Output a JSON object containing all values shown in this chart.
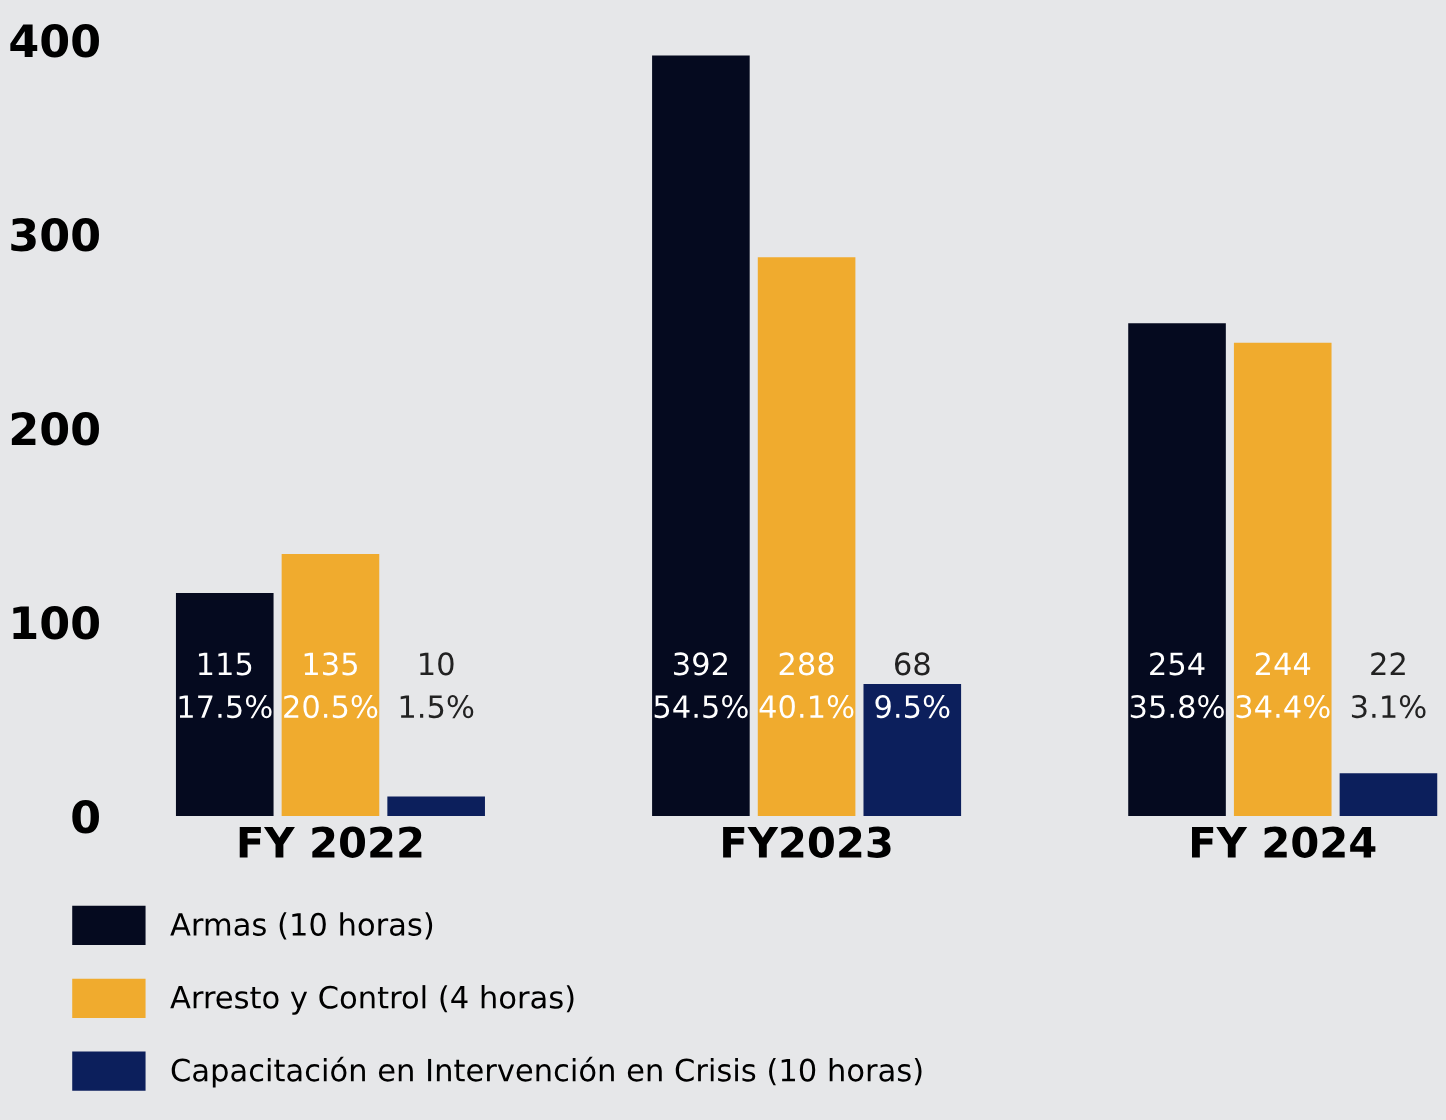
{
  "chart_data": {
    "type": "bar",
    "categories": [
      "FY 2022",
      "FY2023",
      "FY 2024"
    ],
    "series": [
      {
        "name": "Armas (10 horas)",
        "color": "#050a1f",
        "values": [
          115,
          392,
          254
        ],
        "value_labels": [
          "115\n17.5%",
          "392\n54.5%",
          "254\n35.8%"
        ]
      },
      {
        "name": "Arresto y Control (4 horas)",
        "color": "#f0ab2e",
        "values": [
          135,
          288,
          244
        ],
        "value_labels": [
          "135\n20.5%",
          "288\n40.1%",
          "244\n34.4%"
        ]
      },
      {
        "name": "Capacitación en Intervención en Crisis (10 horas)",
        "color": "#0c1f5c",
        "values": [
          10,
          68,
          22
        ],
        "value_labels": [
          "10\n1.5%",
          "68\n9.5%",
          "22\n3.1%"
        ]
      }
    ],
    "ylim": [
      0,
      400
    ],
    "yticks": [
      0,
      100,
      200,
      300,
      400
    ],
    "grid": false,
    "legend": "bottom"
  }
}
